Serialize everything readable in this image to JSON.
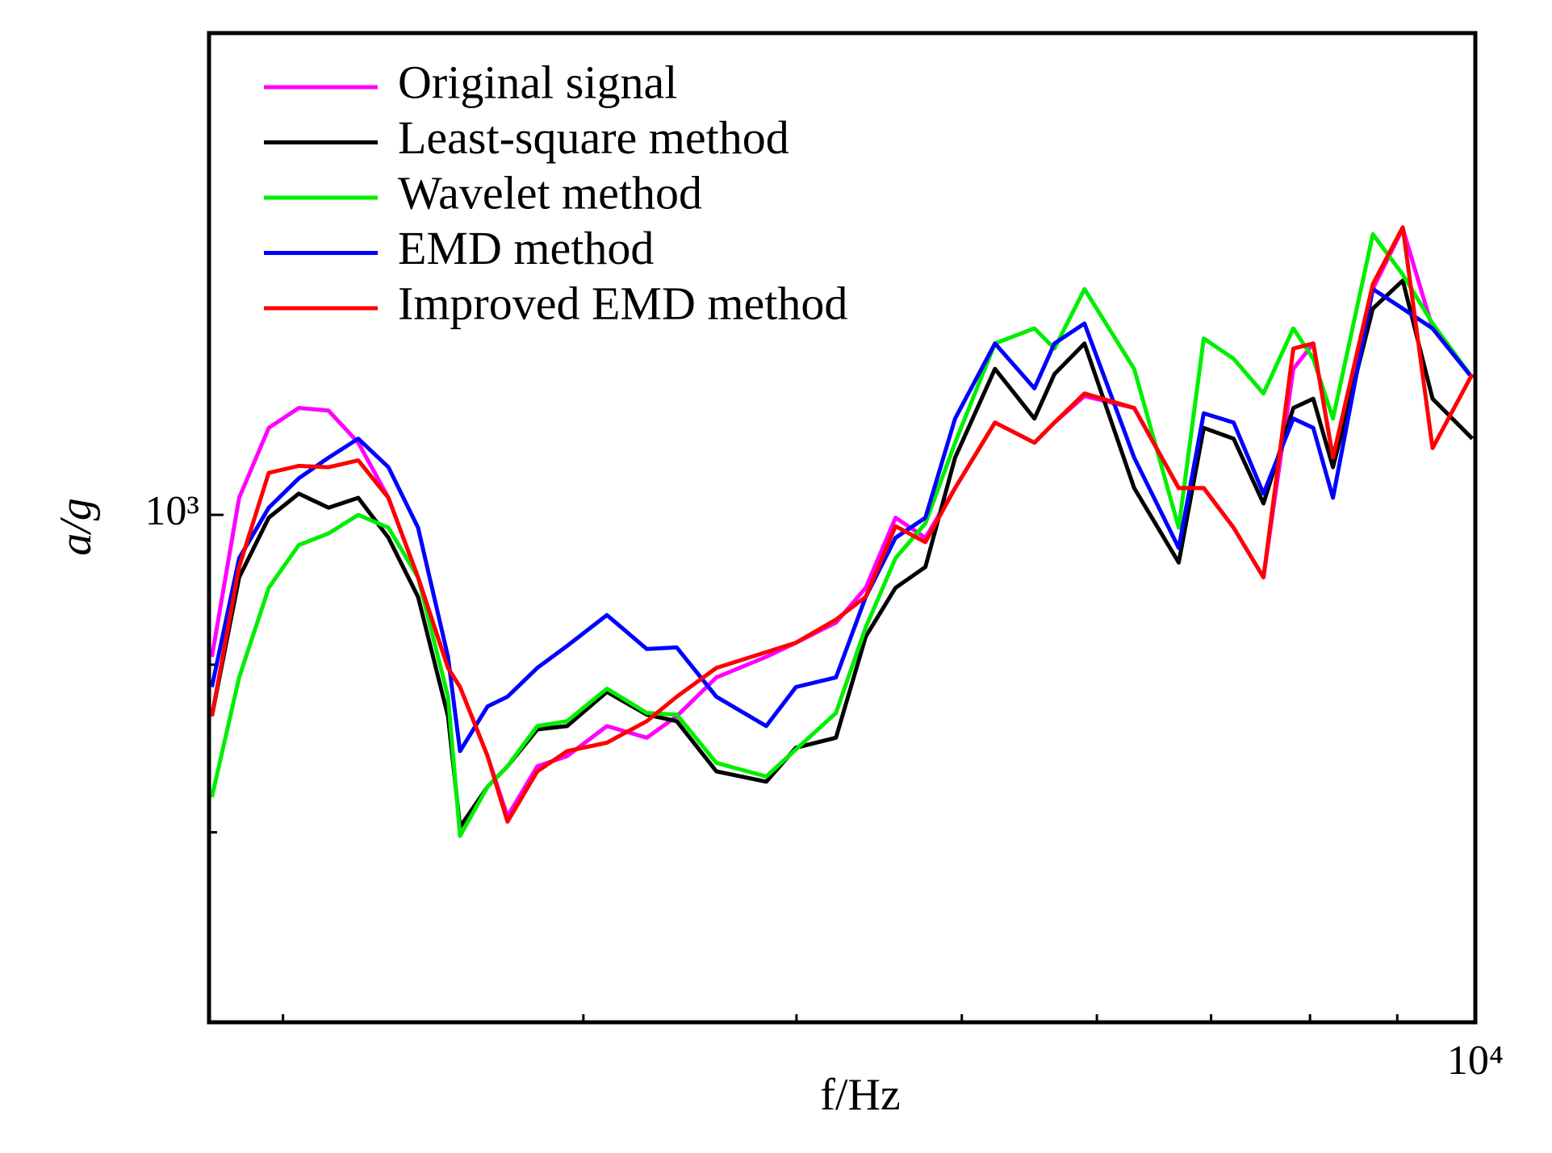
{
  "chart_data": {
    "type": "line",
    "x_label": "f/Hz",
    "y_label": "a/g",
    "xscale": "log",
    "yscale": "log",
    "legend": "upper left",
    "xlim": [
      1810,
      10000
    ],
    "ylim": [
      700,
      1403
    ],
    "xticks": [
      {
        "value": 10000,
        "label": "10⁴"
      }
    ],
    "xminor_ticks": [
      2000,
      3000,
      4000,
      5000,
      6000,
      7000,
      8000,
      9000
    ],
    "yticks": [
      {
        "value": 1000,
        "label": "10³"
      }
    ],
    "yminor_ticks": [
      800,
      900
    ],
    "x": [
      1817,
      1885,
      1962,
      2043,
      2127,
      2214,
      2306,
      2400,
      2499,
      2540,
      2636,
      2708,
      2819,
      2935,
      3097,
      3268,
      3403,
      3590,
      3840,
      3997,
      4219,
      4392,
      4572,
      4760,
      4955,
      5229,
      5515,
      5666,
      5900,
      6310,
      6701,
      6931,
      7216,
      7513,
      7822,
      8035,
      8252,
      8708,
      9067,
      9439,
      9960
    ],
    "series": [
      {
        "name": "Original signal",
        "color": "#ff00ff",
        "values": [
          905,
          1012,
          1063,
          1078,
          1076,
          1052,
          1012,
          957,
          898,
          886,
          844,
          809,
          838,
          844,
          862,
          855,
          868,
          892,
          905,
          914,
          927,
          950,
          998,
          984,
          1019,
          1067,
          1052,
          1067,
          1087,
          1078,
          1019,
          1019,
          991,
          957,
          1108,
          1128,
          1041,
          1172,
          1223,
          1140,
          1101
        ]
      },
      {
        "name": "Least-square method",
        "color": "#000000",
        "values": [
          868,
          957,
          998,
          1015,
          1005,
          1012,
          984,
          944,
          868,
          803,
          826,
          838,
          860,
          862,
          883,
          869,
          865,
          835,
          829,
          849,
          855,
          918,
          950,
          964,
          1041,
          1108,
          1070,
          1104,
          1128,
          1019,
          967,
          1063,
          1055,
          1008,
          1078,
          1085,
          1034,
          1156,
          1179,
          1085,
          1055
        ]
      },
      {
        "name": "Wavelet method",
        "color": "#00ee00",
        "values": [
          820,
          892,
          950,
          979,
          987,
          1000,
          991,
          957,
          880,
          798,
          826,
          838,
          862,
          865,
          885,
          870,
          869,
          840,
          832,
          848,
          870,
          924,
          970,
          994,
          1052,
          1128,
          1140,
          1124,
          1172,
          1108,
          991,
          1132,
          1116,
          1089,
          1140,
          1116,
          1070,
          1218,
          1184,
          1144,
          1101
        ]
      },
      {
        "name": "EMD method",
        "color": "#0000ff",
        "values": [
          886,
          970,
          1005,
          1026,
          1041,
          1055,
          1034,
          991,
          905,
          847,
          874,
          880,
          898,
          912,
          932,
          910,
          911,
          880,
          862,
          886,
          892,
          944,
          984,
          998,
          1070,
          1128,
          1093,
          1128,
          1144,
          1041,
          977,
          1074,
          1067,
          1015,
          1070,
          1063,
          1012,
          1172,
          1156,
          1140,
          1101
        ]
      },
      {
        "name": "Improved EMD method",
        "color": "#ff0000",
        "values": [
          868,
          964,
          1030,
          1035,
          1034,
          1039,
          1012,
          957,
          898,
          886,
          844,
          806,
          835,
          847,
          852,
          865,
          880,
          898,
          908,
          914,
          929,
          944,
          992,
          981,
          1019,
          1067,
          1052,
          1067,
          1089,
          1078,
          1019,
          1019,
          991,
          957,
          1124,
          1128,
          1041,
          1176,
          1224,
          1048,
          1104
        ]
      }
    ]
  }
}
